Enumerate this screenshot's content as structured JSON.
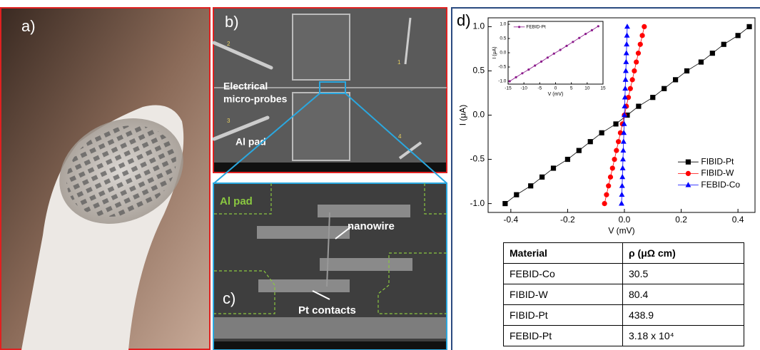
{
  "panels": {
    "a": {
      "label": "a)"
    },
    "b": {
      "label": "b)",
      "probe_label": [
        "Electrical",
        "micro-probes"
      ],
      "pad_label": "Al pad",
      "probe_numbers": [
        "1",
        "2",
        "3",
        "4"
      ]
    },
    "c": {
      "label": "c)",
      "pad_label": "Al pad",
      "wire_label": "nanowire",
      "contact_label": "Pt contacts"
    },
    "d": {
      "label": "d)"
    }
  },
  "chart_data": [
    {
      "type": "line",
      "xlabel": "V (mV)",
      "ylabel": "I (μA)",
      "xlim": [
        -0.48,
        0.46
      ],
      "ylim": [
        -1.1,
        1.1
      ],
      "xticks": [
        -0.4,
        -0.2,
        {
          "value": 0,
          "label": "0.0"
        },
        0.2,
        0.4
      ],
      "yticks": [
        {
          "value": -1,
          "label": "-1.0"
        },
        -0.5,
        {
          "value": 0,
          "label": "0.0"
        },
        0.5,
        {
          "value": 1,
          "label": "1.0"
        }
      ],
      "legend": "lower right",
      "series": [
        {
          "name": "FIBID-Pt",
          "color": "#000000",
          "marker": "square",
          "x": [
            -0.42,
            -0.38,
            -0.33,
            -0.29,
            -0.25,
            -0.2,
            -0.16,
            -0.12,
            -0.08,
            -0.03,
            0.01,
            0.05,
            0.1,
            0.14,
            0.18,
            0.22,
            0.27,
            0.31,
            0.35,
            0.4,
            0.44
          ],
          "values": [
            -1,
            -0.9,
            -0.8,
            -0.7,
            -0.6,
            -0.5,
            -0.4,
            -0.3,
            -0.2,
            -0.1,
            0,
            0.1,
            0.2,
            0.3,
            0.4,
            0.5,
            0.6,
            0.7,
            0.8,
            0.9,
            1
          ]
        },
        {
          "name": "FIBID-W",
          "color": "#ff0000",
          "marker": "circle",
          "x": [
            -0.07,
            -0.063,
            -0.056,
            -0.049,
            -0.042,
            -0.035,
            -0.028,
            -0.021,
            -0.014,
            -0.007,
            0,
            0.007,
            0.014,
            0.021,
            0.028,
            0.035,
            0.042,
            0.049,
            0.056,
            0.063,
            0.07
          ],
          "values": [
            -1,
            -0.9,
            -0.8,
            -0.7,
            -0.6,
            -0.5,
            -0.4,
            -0.3,
            -0.2,
            -0.1,
            0,
            0.1,
            0.2,
            0.3,
            0.4,
            0.5,
            0.6,
            0.7,
            0.8,
            0.9,
            1
          ]
        },
        {
          "name": "FEBID-Co",
          "color": "#0000ff",
          "marker": "triangle",
          "x": [
            -0.01,
            -0.009,
            -0.008,
            -0.007,
            -0.006,
            -0.005,
            -0.004,
            -0.003,
            -0.002,
            -0.001,
            0,
            0.001,
            0.002,
            0.003,
            0.004,
            0.005,
            0.006,
            0.007,
            0.008,
            0.009,
            0.01
          ],
          "values": [
            -1,
            -0.9,
            -0.8,
            -0.7,
            -0.6,
            -0.5,
            -0.4,
            -0.3,
            -0.2,
            -0.1,
            0,
            0.1,
            0.2,
            0.3,
            0.4,
            0.5,
            0.6,
            0.7,
            0.8,
            0.9,
            1
          ]
        }
      ]
    },
    {
      "type": "line",
      "xlabel": "V (mV)",
      "ylabel": "I (μA)",
      "xlim": [
        -15,
        15
      ],
      "ylim": [
        -1.1,
        1.1
      ],
      "xticks": [
        -15,
        -10,
        -5,
        0,
        5,
        10,
        15
      ],
      "yticks": [
        {
          "value": -1,
          "label": "-1.0"
        },
        -0.5,
        {
          "value": 0,
          "label": "0.0"
        },
        0.5,
        {
          "value": 1,
          "label": "1.0"
        }
      ],
      "legend": "upper left",
      "series": [
        {
          "name": "FEBID-Pt",
          "color": "#8b1a8b",
          "marker": "circle",
          "x": [
            -14.5,
            -12.5,
            -10.5,
            -8.5,
            -6.5,
            -4.5,
            -2.5,
            -0.5,
            1.5,
            3.5,
            5.5,
            7.5,
            9.5,
            11.5,
            13.5
          ],
          "values": [
            -1,
            -0.86,
            -0.72,
            -0.59,
            -0.45,
            -0.31,
            -0.17,
            -0.03,
            0.1,
            0.24,
            0.38,
            0.52,
            0.66,
            0.79,
            0.93
          ]
        }
      ]
    }
  ],
  "table": {
    "header": [
      "Material",
      "ρ (μΩ cm)"
    ],
    "rows": [
      [
        "FEBID-Co",
        "30.5"
      ],
      [
        "FIBID-W",
        "80.4"
      ],
      [
        "FIBID-Pt",
        "438.9"
      ],
      [
        "FEBID-Pt",
        "3.18 x 10⁴"
      ]
    ]
  }
}
